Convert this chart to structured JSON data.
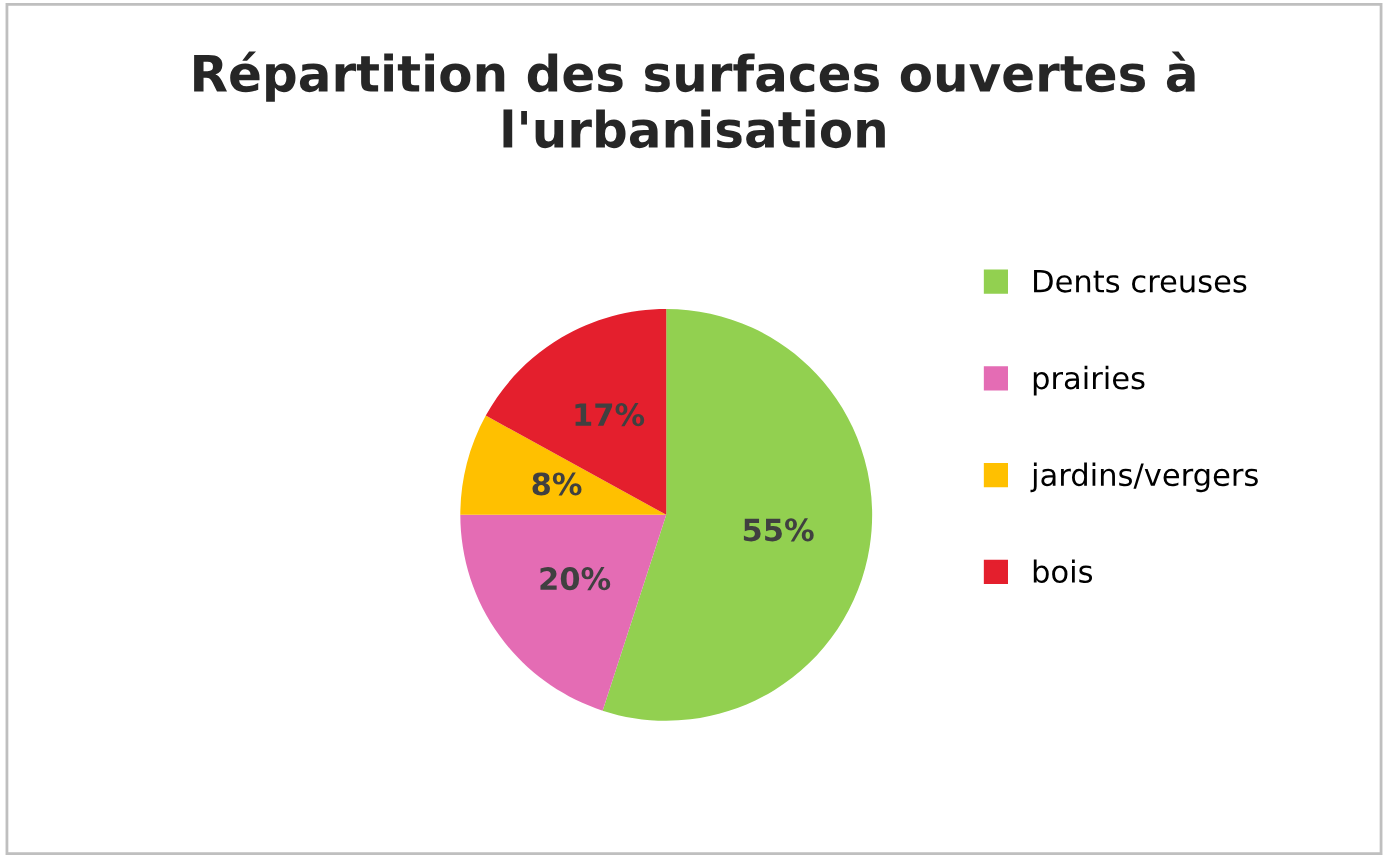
{
  "chart_data": {
    "type": "pie",
    "title": "Répartition des surfaces ouvertes à l'urbanisation",
    "categories": [
      "Dents creuses",
      "prairies",
      "jardins/vergers",
      "bois"
    ],
    "values": [
      55,
      20,
      8,
      17
    ],
    "colors": [
      "#92d050",
      "#e46cb4",
      "#ffc000",
      "#e41f2d"
    ],
    "value_labels": [
      "55%",
      "20%",
      "8%",
      "17%"
    ],
    "legend": "right"
  }
}
